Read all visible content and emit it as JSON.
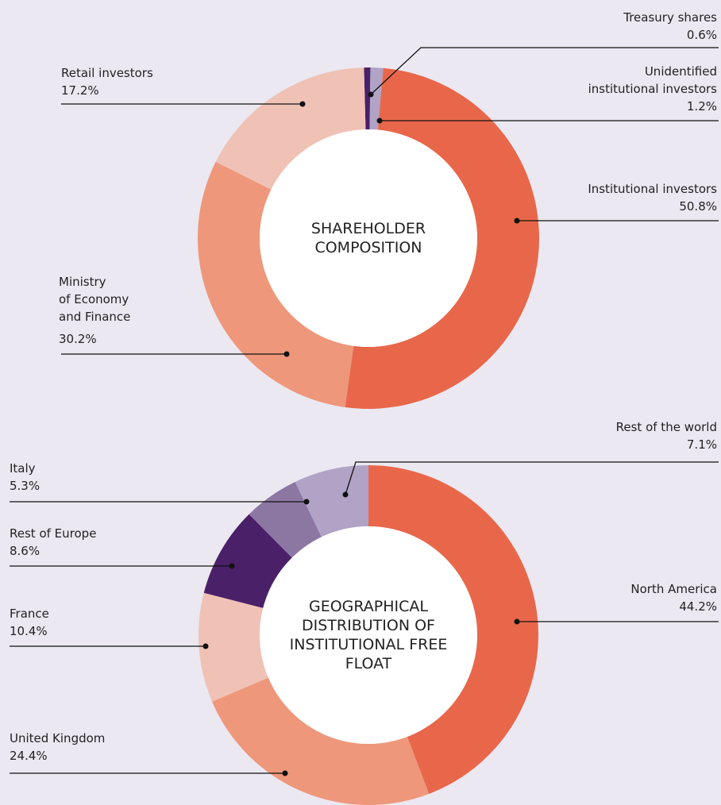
{
  "chart_data": [
    {
      "type": "pie",
      "title": "SHAREHOLDER COMPOSITION",
      "categories": [
        "Treasury shares",
        "Unidentified\ninstitutional investors",
        "Institutional investors",
        "Ministry\nof Economy\nand Finance",
        "Retail investors"
      ],
      "values": [
        0.6,
        1.2,
        50.8,
        30.2,
        17.2
      ],
      "value_labels": [
        "0.6%",
        "1.2%",
        "50.8%",
        "30.2%",
        "17.2%"
      ],
      "colors": [
        "#4a2068",
        "#b0a3c6",
        "#e8674a",
        "#ef977a",
        "#efc2b5"
      ]
    },
    {
      "type": "pie",
      "title": "GEOGRAPHICAL DISTRIBUTION OF INSTITUTIONAL FREE FLOAT",
      "categories": [
        "North America",
        "United Kingdom",
        "France",
        "Rest of Europe",
        "Italy",
        "Rest of the world"
      ],
      "values": [
        44.2,
        24.4,
        10.4,
        8.6,
        5.3,
        7.1
      ],
      "value_labels": [
        "44.2%",
        "24.4%",
        "10.4%",
        "8.6%",
        "5.3%",
        "7.1%"
      ],
      "colors": [
        "#e8674a",
        "#ef977a",
        "#efc2b5",
        "#4a2068",
        "#8c77a3",
        "#b0a3c6"
      ]
    }
  ]
}
